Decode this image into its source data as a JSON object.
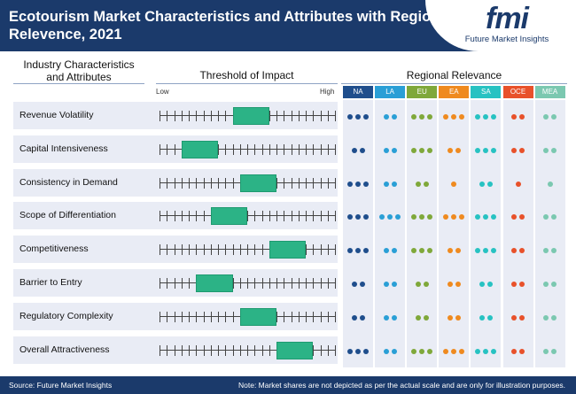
{
  "header": {
    "title": "Ecotourism Market Characteristics and Attributes with Regional Relevence, 2021",
    "logo_mark": "fmi",
    "logo_sub": "Future Market Insights"
  },
  "columns": {
    "industry": "Industry Characteristics and Attributes",
    "threshold": "Threshold of Impact",
    "regional": "Regional Relevance",
    "low": "Low",
    "high": "High"
  },
  "footer": {
    "source": "Source: Future Market Insights",
    "note": "Note: Market shares are not depicted as per the actual scale and are only for illustration purposes."
  },
  "colors": {
    "header_bg": "#1b3a6b",
    "bar": "#2cb386"
  },
  "chart_data": {
    "type": "table",
    "title": "Ecotourism Market Characteristics and Attributes with Regional Relevence, 2021",
    "threshold_scale": {
      "ticks": 25,
      "min": 0,
      "max": 24
    },
    "regions": [
      {
        "code": "NA",
        "color": "#1f4e8c"
      },
      {
        "code": "LA",
        "color": "#2a9fd6"
      },
      {
        "code": "EU",
        "color": "#7fa83a"
      },
      {
        "code": "EA",
        "color": "#ef8a1f"
      },
      {
        "code": "SA",
        "color": "#27c2c2"
      },
      {
        "code": "OCE",
        "color": "#e8512a"
      },
      {
        "code": "MEA",
        "color": "#7bc8b0"
      }
    ],
    "rows": [
      {
        "label": "Revenue Volatility",
        "range": [
          10,
          15
        ],
        "regional": [
          3,
          2,
          3,
          3,
          3,
          2,
          2
        ]
      },
      {
        "label": "Capital Intensiveness",
        "range": [
          3,
          8
        ],
        "regional": [
          2,
          2,
          3,
          2,
          3,
          2,
          2
        ]
      },
      {
        "label": "Consistency in Demand",
        "range": [
          11,
          16
        ],
        "regional": [
          3,
          2,
          2,
          1,
          2,
          1,
          1
        ]
      },
      {
        "label": "Scope of Differentiation",
        "range": [
          7,
          12
        ],
        "regional": [
          3,
          3,
          3,
          3,
          3,
          2,
          2
        ]
      },
      {
        "label": "Competitiveness",
        "range": [
          15,
          20
        ],
        "regional": [
          3,
          2,
          3,
          2,
          3,
          2,
          2
        ]
      },
      {
        "label": "Barrier to Entry",
        "range": [
          5,
          10
        ],
        "regional": [
          2,
          2,
          2,
          2,
          2,
          2,
          2
        ]
      },
      {
        "label": "Regulatory Complexity",
        "range": [
          11,
          16
        ],
        "regional": [
          2,
          2,
          2,
          2,
          2,
          2,
          2
        ]
      },
      {
        "label": "Overall Attractiveness",
        "range": [
          16,
          21
        ],
        "regional": [
          3,
          2,
          3,
          3,
          3,
          2,
          2
        ]
      }
    ]
  }
}
